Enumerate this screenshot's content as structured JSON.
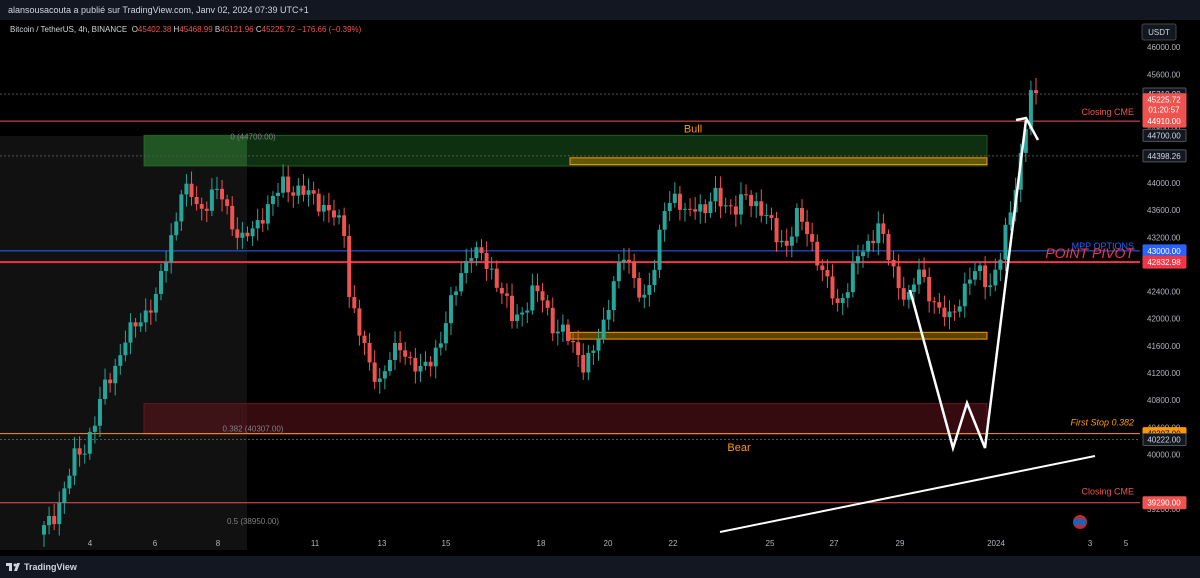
{
  "header": {
    "publish_text": "alansousacouta a publié sur TradingView.com, Janv 02, 2024 07:39 UTC+1"
  },
  "legend": {
    "symbol": "Bitcoin / TetherUS, 4h, BINANCE",
    "o_label": "O",
    "o": "45402.38",
    "h_label": "H",
    "h": "45468.99",
    "b_label": "B",
    "b": "45121.96",
    "c_label": "C",
    "c": "45225.72",
    "change": "−176.66 (−0.39%)"
  },
  "axis": {
    "currency": "USDT"
  },
  "footer": {
    "brand": "TradingView"
  },
  "colors": {
    "up": "#26a69a",
    "down": "#ef5350",
    "bg": "#000000",
    "panel": "#131722",
    "orange": "#ff9800",
    "red_line": "#f23645"
  },
  "chart_data": {
    "type": "candlestick",
    "symbol": "Bitcoin / TetherUS",
    "interval": "4h",
    "exchange": "BINANCE",
    "ylim": [
      38800,
      46400
    ],
    "y_ticks": [
      39200,
      40000,
      40400,
      40800,
      41200,
      41600,
      42000,
      42400,
      42800,
      43200,
      43600,
      44000,
      44400,
      44800,
      45600,
      46000
    ],
    "x_tick_labels": [
      "4",
      "6",
      "8",
      "11",
      "13",
      "15",
      "18",
      "20",
      "22",
      "25",
      "27",
      "29",
      "2024",
      "3",
      "5"
    ],
    "close_path": [
      [
        0,
        38900
      ],
      [
        2,
        39100
      ],
      [
        4,
        39500
      ],
      [
        6,
        39950
      ],
      [
        8,
        40100
      ],
      [
        10,
        40500
      ],
      [
        12,
        41000
      ],
      [
        14,
        41300
      ],
      [
        16,
        41700
      ],
      [
        18,
        41900
      ],
      [
        20,
        42100
      ],
      [
        22,
        42300
      ],
      [
        24,
        42900
      ],
      [
        26,
        43500
      ],
      [
        27,
        43900
      ],
      [
        29,
        43800
      ],
      [
        31,
        43600
      ],
      [
        33,
        43850
      ],
      [
        35,
        43800
      ],
      [
        37,
        43400
      ],
      [
        39,
        43150
      ],
      [
        41,
        43300
      ],
      [
        43,
        43550
      ],
      [
        45,
        43750
      ],
      [
        47,
        44000
      ],
      [
        49,
        43900
      ],
      [
        51,
        43850
      ],
      [
        53,
        43800
      ],
      [
        55,
        43650
      ],
      [
        57,
        43500
      ],
      [
        59,
        43300
      ],
      [
        60,
        42400
      ],
      [
        62,
        41800
      ],
      [
        64,
        41300
      ],
      [
        66,
        41100
      ],
      [
        68,
        41400
      ],
      [
        70,
        41600
      ],
      [
        72,
        41400
      ],
      [
        74,
        41200
      ],
      [
        76,
        41400
      ],
      [
        78,
        41700
      ],
      [
        80,
        42200
      ],
      [
        82,
        42700
      ],
      [
        84,
        43000
      ],
      [
        86,
        42900
      ],
      [
        88,
        42700
      ],
      [
        90,
        42400
      ],
      [
        92,
        42000
      ],
      [
        94,
        42100
      ],
      [
        96,
        42400
      ],
      [
        98,
        42300
      ],
      [
        100,
        41900
      ],
      [
        102,
        41800
      ],
      [
        104,
        41600
      ],
      [
        106,
        41350
      ],
      [
        108,
        41500
      ],
      [
        110,
        41900
      ],
      [
        112,
        42600
      ],
      [
        114,
        42900
      ],
      [
        116,
        42600
      ],
      [
        118,
        42300
      ],
      [
        120,
        42700
      ],
      [
        122,
        43700
      ],
      [
        124,
        43800
      ],
      [
        126,
        43500
      ],
      [
        128,
        43700
      ],
      [
        130,
        43600
      ],
      [
        132,
        43800
      ],
      [
        134,
        43700
      ],
      [
        136,
        43600
      ],
      [
        138,
        43800
      ],
      [
        140,
        43700
      ],
      [
        142,
        43500
      ],
      [
        144,
        43200
      ],
      [
        146,
        43100
      ],
      [
        148,
        43500
      ],
      [
        150,
        43300
      ],
      [
        152,
        42900
      ],
      [
        154,
        42500
      ],
      [
        156,
        42200
      ],
      [
        158,
        42500
      ],
      [
        160,
        42900
      ],
      [
        162,
        43100
      ],
      [
        164,
        43400
      ],
      [
        166,
        42900
      ],
      [
        168,
        42500
      ],
      [
        170,
        42300
      ],
      [
        172,
        42700
      ],
      [
        174,
        42400
      ],
      [
        176,
        42100
      ],
      [
        178,
        42000
      ],
      [
        180,
        42300
      ],
      [
        182,
        42600
      ],
      [
        184,
        42700
      ],
      [
        186,
        42500
      ],
      [
        188,
        42900
      ],
      [
        190,
        43600
      ],
      [
        192,
        44400
      ],
      [
        194,
        45300
      ],
      [
        195,
        45225
      ]
    ],
    "levels": [
      {
        "name": "Closing CME",
        "value": 44910,
        "color": "#ef5350"
      },
      {
        "name": "MPP OPTIONS",
        "value": 43000,
        "color": "#2962ff"
      },
      {
        "name": "POINT PIVOT",
        "value": 42832.98,
        "color": "#f23645"
      },
      {
        "name": "First Stop 0.382",
        "value": 40307,
        "color": "#ff9800"
      },
      {
        "name": "Closing CME",
        "value": 39290,
        "color": "#ef5350"
      }
    ],
    "zones": [
      {
        "name": "Bull",
        "from": 44250,
        "to": 44700,
        "color": "#1b5e20"
      },
      {
        "name": "supply-zone",
        "from": 44270,
        "to": 44370,
        "color": "#a67c00"
      },
      {
        "name": "demand-zone",
        "from": 41700,
        "to": 41800,
        "color": "#a67c00"
      },
      {
        "name": "Bear",
        "from": 40300,
        "to": 40750,
        "color": "#6b1520"
      }
    ],
    "fib_labels": [
      {
        "text": "0 (44700.00)",
        "value": 44700
      },
      {
        "text": "0.382 (40307.00)",
        "value": 40307
      },
      {
        "text": "0.5 (38950.00)",
        "value": 38950
      }
    ],
    "price_tags": [
      {
        "text": "45310.00",
        "value": 45310,
        "bg": "#131722",
        "fg": "#d1d4dc"
      },
      {
        "text": "45225.72",
        "value": 45225.72,
        "bg": "#ef5350",
        "fg": "#ffffff"
      },
      {
        "text": "01:20:57",
        "value": 45080,
        "bg": "#ef5350",
        "fg": "#ffffff"
      },
      {
        "text": "44910.00",
        "value": 44910,
        "bg": "#ef5350",
        "fg": "#ffffff"
      },
      {
        "text": "44700.00",
        "value": 44700,
        "bg": "#131722",
        "fg": "#d1d4dc"
      },
      {
        "text": "44398.26",
        "value": 44398.26,
        "bg": "#131722",
        "fg": "#d1d4dc"
      },
      {
        "text": "43000.00",
        "value": 43000,
        "bg": "#2962ff",
        "fg": "#ffffff"
      },
      {
        "text": "42832.98",
        "value": 42832.98,
        "bg": "#f23645",
        "fg": "#ffffff"
      },
      {
        "text": "40307.00",
        "value": 40307,
        "bg": "#ff9800",
        "fg": "#000000"
      },
      {
        "text": "40222.00",
        "value": 40222,
        "bg": "#131722",
        "fg": "#d1d4dc"
      },
      {
        "text": "39290.00",
        "value": 39290,
        "bg": "#ef5350",
        "fg": "#ffffff"
      }
    ]
  }
}
